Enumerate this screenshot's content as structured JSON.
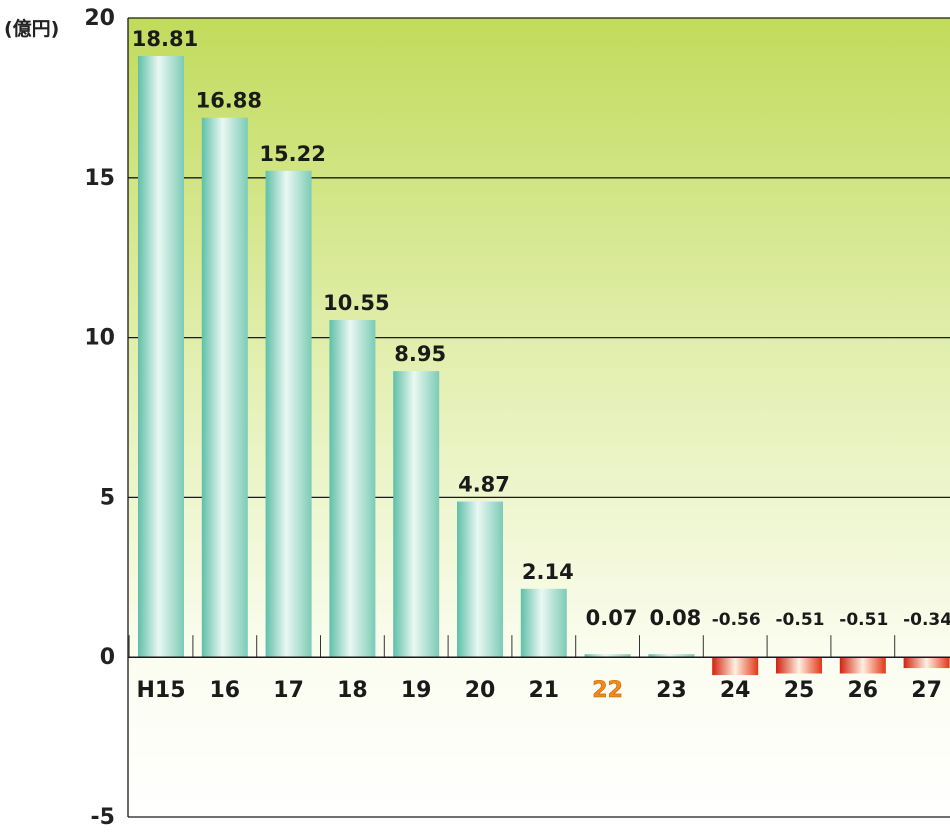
{
  "chart_data": {
    "type": "bar",
    "unit_label": "(億円)",
    "categories": [
      "H15",
      "16",
      "17",
      "18",
      "19",
      "20",
      "21",
      "22",
      "23",
      "24",
      "25",
      "26",
      "27"
    ],
    "values": [
      18.81,
      16.88,
      15.22,
      10.55,
      8.95,
      4.87,
      2.14,
      0.07,
      0.08,
      -0.56,
      -0.51,
      -0.51,
      -0.34
    ],
    "value_labels": [
      "18.81",
      "16.88",
      "15.22",
      "10.55",
      "8.95",
      "4.87",
      "2.14",
      "0.07",
      "0.08",
      "-0.56",
      "-0.51",
      "-0.51",
      "-0.34"
    ],
    "highlighted_category": "22",
    "ylim": [
      -5,
      20
    ],
    "yticks": [
      20,
      15,
      10,
      5,
      0,
      -5
    ],
    "ytick_labels": [
      "20",
      "15",
      "10",
      "5",
      "0",
      "-5"
    ],
    "grid": true,
    "colors": {
      "positive_bar": "#a6dfd2",
      "negative_bar": "#e8301a",
      "highlight_label": "#f08a1c",
      "plot_gradient_top": "#c4dc5e",
      "plot_gradient_bottom": "#ffffff"
    }
  }
}
